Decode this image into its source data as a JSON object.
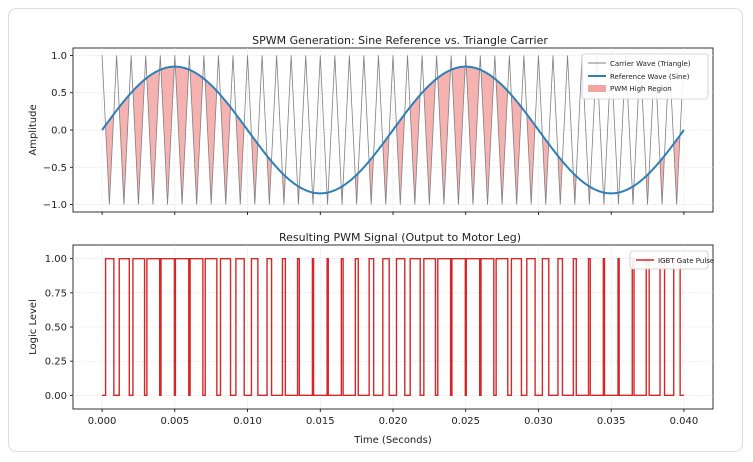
{
  "chart_data": [
    {
      "type": "line",
      "title": "SPWM Generation: Sine Reference vs. Triangle Carrier",
      "xlabel": "",
      "ylabel": "Amplitude",
      "xlim": [
        -0.002,
        0.042
      ],
      "ylim": [
        -1.1,
        1.1
      ],
      "x_ticks": [],
      "y_ticks": [
        1.0,
        0.5,
        0.0,
        -0.5,
        -1.0
      ],
      "y_tick_labels": [
        "1.0",
        "0.5",
        "0.0",
        "−0.5",
        "−1.0"
      ],
      "grid": true,
      "legend_position": "top-right",
      "series": [
        {
          "name": "Carrier Wave (Triangle)",
          "kind": "triangle",
          "frequency_hz": 1000,
          "amplitude": 1.0,
          "x_range": [
            0,
            0.04
          ],
          "color": "#808080"
        },
        {
          "name": "Reference Wave (Sine)",
          "kind": "sine",
          "frequency_hz": 50,
          "amplitude": 0.85,
          "x_range": [
            0,
            0.04
          ],
          "color": "#2e7fb8"
        },
        {
          "name": "PWM High Region",
          "kind": "fill",
          "color": "#f4a3a3"
        }
      ]
    },
    {
      "type": "line",
      "title": "Resulting PWM Signal (Output to Motor Leg)",
      "xlabel": "Time (Seconds)",
      "ylabel": "Logic Level",
      "xlim": [
        -0.002,
        0.042
      ],
      "ylim": [
        -0.1,
        1.1
      ],
      "x_ticks": [
        0.0,
        0.005,
        0.01,
        0.015,
        0.02,
        0.025,
        0.03,
        0.035,
        0.04
      ],
      "x_tick_labels": [
        "0.000",
        "0.005",
        "0.010",
        "0.015",
        "0.020",
        "0.025",
        "0.030",
        "0.035",
        "0.040"
      ],
      "y_ticks": [
        1.0,
        0.75,
        0.5,
        0.25,
        0.0
      ],
      "y_tick_labels": [
        "1.00",
        "0.75",
        "0.50",
        "0.25",
        "0.00"
      ],
      "grid": true,
      "legend_position": "top-right",
      "series": [
        {
          "name": "IGBT Gate Pulse",
          "kind": "pwm",
          "high": 1.0,
          "low": 0.0,
          "x_range": [
            0,
            0.04
          ],
          "color": "#d62728"
        }
      ]
    }
  ]
}
